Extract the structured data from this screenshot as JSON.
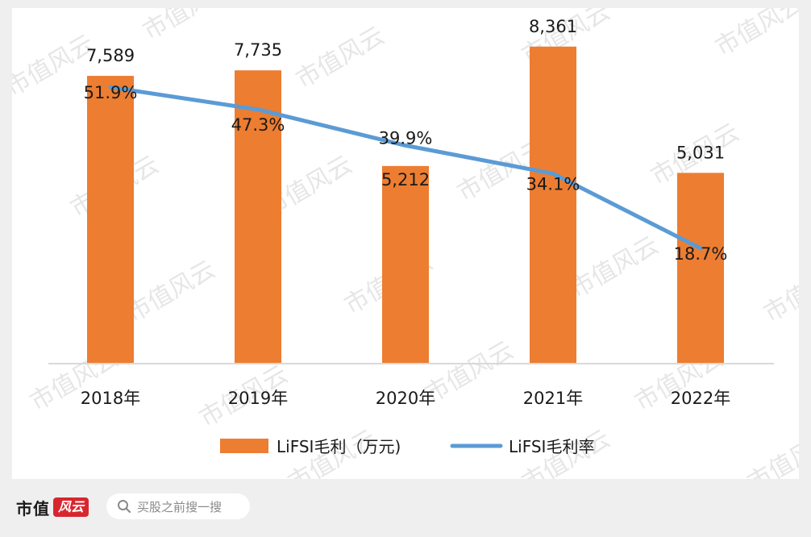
{
  "chart_data": {
    "type": "bar",
    "categories": [
      "2018年",
      "2019年",
      "2020年",
      "2021年",
      "2022年"
    ],
    "series": [
      {
        "name": "LiFSI毛利（万元)",
        "type": "bar",
        "values": [
          7589,
          7735,
          5212,
          8361,
          5031
        ],
        "labels": [
          "7,589",
          "7,735",
          "5,212",
          "8,361",
          "5,031"
        ],
        "color": "#ED7D31"
      },
      {
        "name": "LiFSI毛利率",
        "type": "line",
        "values": [
          51.9,
          47.3,
          39.9,
          34.1,
          18.7
        ],
        "labels": [
          "51.9%",
          "47.3%",
          "39.9%",
          "34.1%",
          "18.7%"
        ],
        "color": "#5B9BD5"
      }
    ],
    "legend_position": "bottom",
    "grid": false
  },
  "watermark": {
    "text": "市值风云",
    "color": "#e6e6e6"
  },
  "footer": {
    "brand_text": "市值",
    "brand_badge": "风云",
    "search_placeholder": "买股之前搜一搜",
    "search_icon": "search-icon"
  }
}
